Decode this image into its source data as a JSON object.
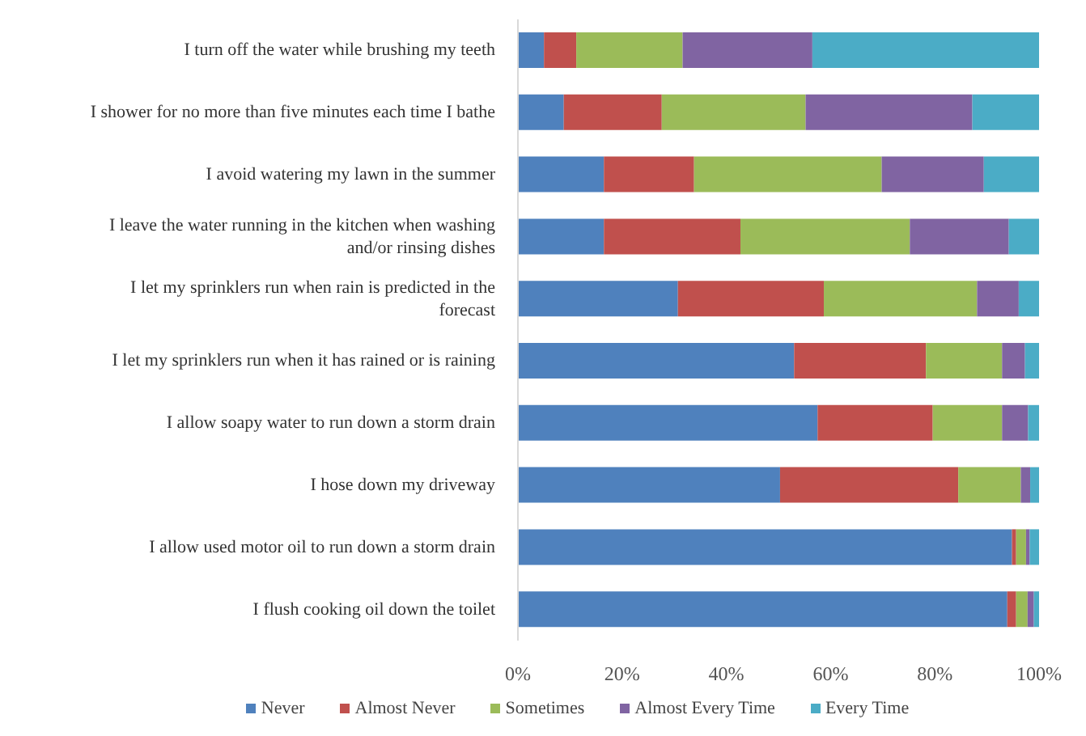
{
  "chart_data": {
    "type": "bar",
    "orientation": "horizontal",
    "stacked": true,
    "categories": [
      "I turn off the water while brushing my teeth",
      "I shower for no more than five minutes each time I bathe",
      "I avoid watering my lawn in the summer",
      "I leave the water running in the kitchen when washing and/or rinsing dishes",
      "I let my sprinklers run when rain is predicted in the forecast",
      "I let my sprinklers run when it has rained or is raining",
      "I allow soapy water to run down a storm drain",
      "I hose down my driveway",
      "I allow used motor oil to run down a storm drain",
      "I flush cooking oil down the toilet"
    ],
    "series": [
      {
        "name": "Never",
        "color": "#4f81bd",
        "values": [
          5,
          8.8,
          16.5,
          16.5,
          30.7,
          53,
          57.5,
          50.3,
          94.8,
          93.9
        ]
      },
      {
        "name": "Almost Never",
        "color": "#c0504d",
        "values": [
          6.2,
          18.8,
          17.3,
          26.2,
          28,
          25.3,
          22.1,
          34.2,
          0.8,
          1.7
        ]
      },
      {
        "name": "Sometimes",
        "color": "#9bbb59",
        "values": [
          20.4,
          27.6,
          36,
          32.5,
          29.4,
          14.6,
          13.3,
          12,
          1.9,
          2.2
        ]
      },
      {
        "name": "Almost Every Time",
        "color": "#8064a2",
        "values": [
          24.9,
          32,
          19.6,
          19,
          8,
          4.4,
          5,
          1.8,
          0.7,
          1.2
        ]
      },
      {
        "name": "Every Time",
        "color": "#4bacc6",
        "values": [
          43.5,
          12.8,
          10.6,
          5.8,
          3.9,
          2.7,
          2.1,
          1.7,
          1.8,
          1
        ]
      }
    ],
    "xlim": [
      0,
      100
    ],
    "xticks": [
      {
        "value": 0,
        "label": "0%"
      },
      {
        "value": 20,
        "label": "20%"
      },
      {
        "value": 40,
        "label": "40%"
      },
      {
        "value": 60,
        "label": "60%"
      },
      {
        "value": 80,
        "label": "80%"
      },
      {
        "value": 100,
        "label": "100%"
      }
    ],
    "grid": false,
    "legend": "bottom"
  }
}
